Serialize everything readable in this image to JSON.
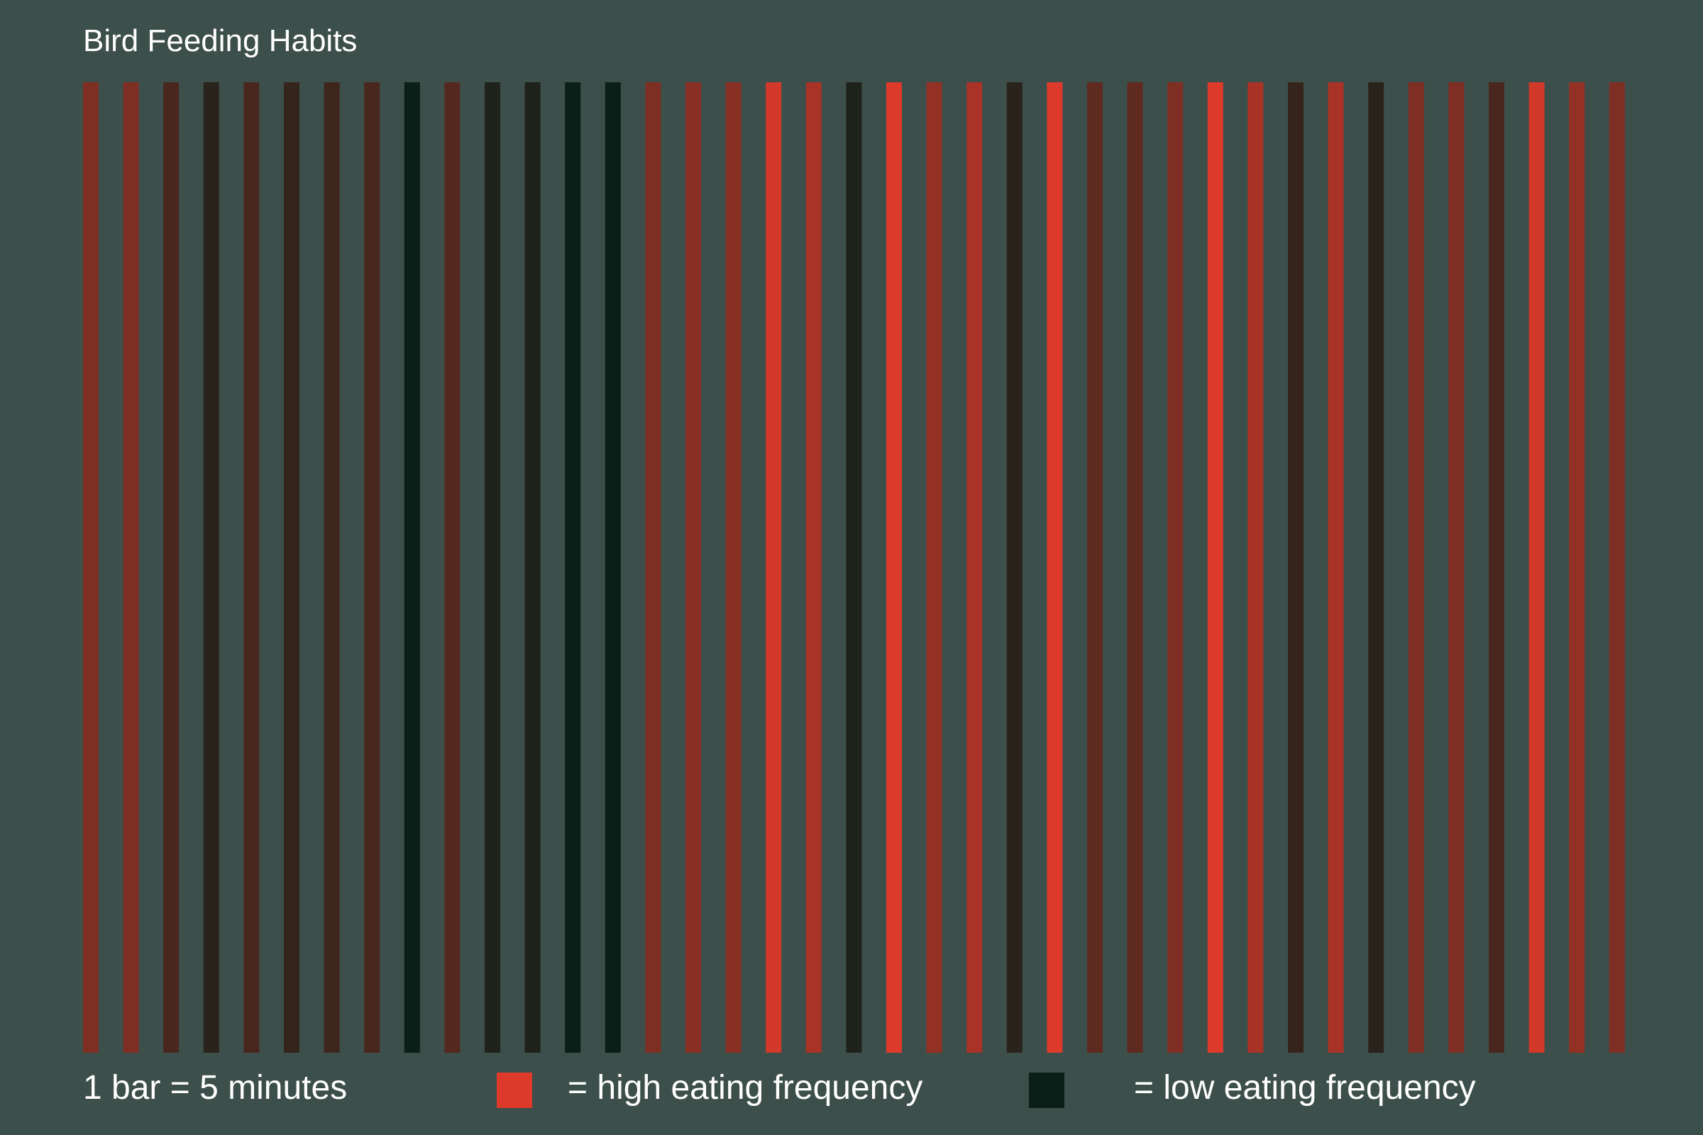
{
  "chart_data": {
    "type": "bar",
    "title": "Bird Feeding Habits",
    "note": "1 bar = 5 minutes",
    "encoding": "color",
    "colors": {
      "background": "#3d4f4b",
      "high": "#de3a2c",
      "low": "#0a1f18"
    },
    "legend": [
      {
        "label": "= high eating frequency",
        "color": "#de3a2c"
      },
      {
        "label": "= low eating frequency",
        "color": "#0a1f18"
      }
    ],
    "values": [
      0.55,
      0.55,
      0.3,
      0.15,
      0.3,
      0.2,
      0.25,
      0.3,
      0.0,
      0.35,
      0.1,
      0.1,
      0.0,
      0.0,
      0.55,
      0.6,
      0.6,
      0.95,
      0.75,
      0.1,
      1.0,
      0.65,
      0.75,
      0.15,
      1.0,
      0.4,
      0.4,
      0.55,
      1.0,
      0.75,
      0.2,
      0.75,
      0.15,
      0.55,
      0.55,
      0.3,
      0.95,
      0.65,
      0.55
    ]
  }
}
